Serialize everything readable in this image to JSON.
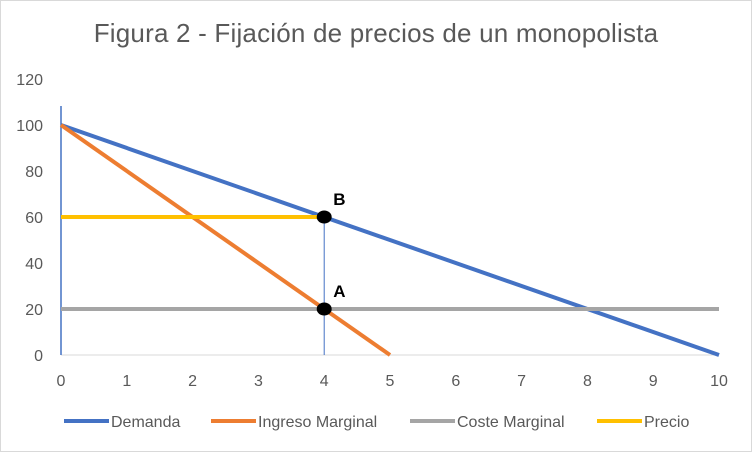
{
  "chart_data": {
    "type": "line",
    "title": "Figura 2 - Fijación de precios de un monopolista",
    "xlabel": "",
    "ylabel": "",
    "xlim": [
      0,
      10
    ],
    "ylim": [
      0,
      120
    ],
    "x_ticks": [
      "0",
      "1",
      "2",
      "3",
      "4",
      "5",
      "6",
      "7",
      "8",
      "9",
      "10"
    ],
    "y_ticks": [
      "0",
      "20",
      "40",
      "60",
      "80",
      "100",
      "120"
    ],
    "grid": false,
    "legend_position": "bottom",
    "series": [
      {
        "name": "Demanda",
        "color": "#4472c4",
        "points": [
          [
            0,
            100
          ],
          [
            10,
            0
          ]
        ]
      },
      {
        "name": "Ingreso Marginal",
        "color": "#ed7d31",
        "points": [
          [
            0,
            100
          ],
          [
            5,
            0
          ]
        ]
      },
      {
        "name": "Coste Marginal",
        "color": "#a5a5a5",
        "points": [
          [
            0,
            20
          ],
          [
            10,
            20
          ]
        ]
      },
      {
        "name": "Precio",
        "color": "#ffc000",
        "points": [
          [
            0,
            60
          ],
          [
            4,
            60
          ]
        ]
      }
    ],
    "guide_line": {
      "color": "#4472c4",
      "points": [
        [
          4,
          0
        ],
        [
          4,
          60
        ]
      ]
    },
    "marked_points": [
      {
        "label": "A",
        "x": 4,
        "y": 20
      },
      {
        "label": "B",
        "x": 4,
        "y": 60
      }
    ]
  }
}
